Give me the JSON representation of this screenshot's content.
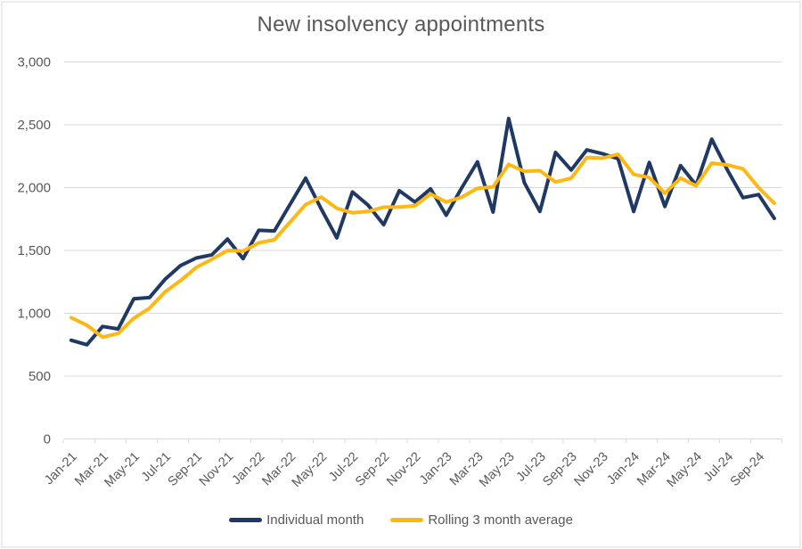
{
  "title": "New insolvency appointments",
  "legend": {
    "items": [
      {
        "label": "Individual month"
      },
      {
        "label": "Rolling 3 month average"
      }
    ]
  },
  "chart_data": {
    "type": "line",
    "title": "New insolvency appointments",
    "xlabel": "",
    "ylabel": "",
    "ylim": [
      0,
      3000
    ],
    "grid": "horizontal",
    "legend_position": "bottom",
    "text_color": "#595959",
    "axis_color": "#d9d9d9",
    "gridline_color": "#d9d9d9",
    "x_categories": [
      "Jan-21",
      "Feb-21",
      "Mar-21",
      "Apr-21",
      "May-21",
      "Jun-21",
      "Jul-21",
      "Aug-21",
      "Sep-21",
      "Oct-21",
      "Nov-21",
      "Dec-21",
      "Jan-22",
      "Feb-22",
      "Mar-22",
      "Apr-22",
      "May-22",
      "Jun-22",
      "Jul-22",
      "Aug-22",
      "Sep-22",
      "Oct-22",
      "Nov-22",
      "Dec-22",
      "Jan-23",
      "Feb-23",
      "Mar-23",
      "Apr-23",
      "May-23",
      "Jun-23",
      "Jul-23",
      "Aug-23",
      "Sep-23",
      "Oct-23",
      "Nov-23",
      "Dec-23",
      "Jan-24",
      "Feb-24",
      "Mar-24",
      "Apr-24",
      "May-24",
      "Jun-24",
      "Jul-24",
      "Aug-24",
      "Sep-24",
      "Oct-24"
    ],
    "x_tick_labels": [
      "Jan-21",
      "Mar-21",
      "May-21",
      "Jul-21",
      "Sep-21",
      "Nov-21",
      "Jan-22",
      "Mar-22",
      "May-22",
      "Jul-22",
      "Sep-22",
      "Nov-22",
      "Jan-23",
      "Mar-23",
      "May-23",
      "Jul-23",
      "Sep-23",
      "Nov-23",
      "Jan-24",
      "Mar-24",
      "May-24",
      "Jul-24",
      "Sep-24"
    ],
    "y_ticks": {
      "values": [
        0,
        500,
        1000,
        1500,
        2000,
        2500,
        3000
      ],
      "labels": [
        "0",
        "500",
        "1,000",
        "1,500",
        "2,000",
        "2,500",
        "3,000"
      ]
    },
    "series": [
      {
        "name": "Individual month",
        "color": "#1F3864",
        "values": [
          785,
          750,
          895,
          875,
          1115,
          1125,
          1270,
          1380,
          1440,
          1465,
          1590,
          1435,
          1660,
          1655,
          1865,
          2075,
          1830,
          1600,
          1965,
          1860,
          1705,
          1975,
          1885,
          1990,
          1780,
          2000,
          2205,
          1805,
          2550,
          2040,
          1810,
          2280,
          2140,
          2300,
          2270,
          2230,
          1810,
          2200,
          1850,
          2175,
          2020,
          2385,
          2140,
          1920,
          1945,
          1755
        ]
      },
      {
        "name": "Rolling 3 month average",
        "color": "#FFB713",
        "values": [
          965,
          905,
          810,
          840,
          960,
          1040,
          1170,
          1260,
          1365,
          1430,
          1500,
          1495,
          1560,
          1585,
          1725,
          1865,
          1925,
          1835,
          1800,
          1810,
          1845,
          1845,
          1855,
          1950,
          1885,
          1925,
          1995,
          2005,
          2185,
          2130,
          2135,
          2045,
          2075,
          2240,
          2235,
          2265,
          2105,
          2080,
          1955,
          2075,
          2015,
          2195,
          2180,
          2150,
          2000,
          1875
        ]
      }
    ]
  }
}
